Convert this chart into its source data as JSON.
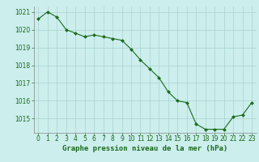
{
  "x": [
    0,
    1,
    2,
    3,
    4,
    5,
    6,
    7,
    8,
    9,
    10,
    11,
    12,
    13,
    14,
    15,
    16,
    17,
    18,
    19,
    20,
    21,
    22,
    23
  ],
  "y": [
    1020.6,
    1021.0,
    1020.7,
    1020.0,
    1019.8,
    1019.6,
    1019.7,
    1019.6,
    1019.5,
    1019.4,
    1018.9,
    1018.3,
    1017.8,
    1017.3,
    1016.5,
    1016.0,
    1015.9,
    1014.7,
    1014.4,
    1014.4,
    1014.4,
    1015.1,
    1015.2,
    1015.9
  ],
  "line_color": "#1a6b1a",
  "marker_color": "#1a6b1a",
  "bg_color": "#cceeed",
  "grid_color": "#aad4d0",
  "label_color": "#1a6b1a",
  "xlabel": "Graphe pression niveau de la mer (hPa)",
  "ylim_min": 1014.2,
  "ylim_max": 1021.3,
  "yticks": [
    1015,
    1016,
    1017,
    1018,
    1019,
    1020,
    1021
  ],
  "xlabel_fontsize": 6.5,
  "tick_fontsize": 5.5
}
